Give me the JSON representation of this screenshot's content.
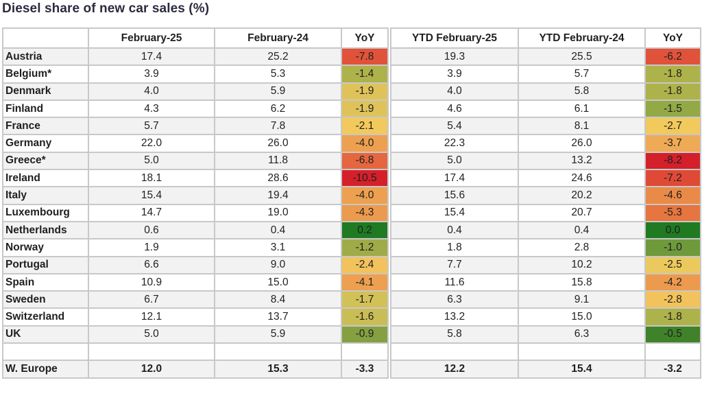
{
  "title": "Diesel share of new car sales (%)",
  "chart_data": {
    "type": "table",
    "title": "Diesel share of new car sales (%)",
    "columns": [
      "",
      "February-25",
      "February-24",
      "YoY",
      "YTD February-25",
      "YTD February-24",
      "YoY"
    ],
    "rows": [
      {
        "country": "Austria",
        "feb25": "17.4",
        "feb24": "25.2",
        "yoy": "-7.8",
        "ytd25": "19.3",
        "ytd24": "25.5",
        "ytd_yoy": "-6.2",
        "yoy_color": "#e0533a",
        "ytd_yoy_color": "#e0533a"
      },
      {
        "country": "Belgium*",
        "feb25": "3.9",
        "feb24": "5.3",
        "yoy": "-1.4",
        "ytd25": "3.9",
        "ytd24": "5.7",
        "ytd_yoy": "-1.8",
        "yoy_color": "#adb24a",
        "ytd_yoy_color": "#adb24a"
      },
      {
        "country": "Denmark",
        "feb25": "4.0",
        "feb24": "5.9",
        "yoy": "-1.9",
        "ytd25": "4.0",
        "ytd24": "5.8",
        "ytd_yoy": "-1.8",
        "yoy_color": "#dfc35a",
        "ytd_yoy_color": "#adb24a"
      },
      {
        "country": "Finland",
        "feb25": "4.3",
        "feb24": "6.2",
        "yoy": "-1.9",
        "ytd25": "4.6",
        "ytd24": "6.1",
        "ytd_yoy": "-1.5",
        "yoy_color": "#dfc35a",
        "ytd_yoy_color": "#92a945"
      },
      {
        "country": "France",
        "feb25": "5.7",
        "feb24": "7.8",
        "yoy": "-2.1",
        "ytd25": "5.4",
        "ytd24": "8.1",
        "ytd_yoy": "-2.7",
        "yoy_color": "#f2c95c",
        "ytd_yoy_color": "#f2c95c"
      },
      {
        "country": "Germany",
        "feb25": "22.0",
        "feb24": "26.0",
        "yoy": "-4.0",
        "ytd25": "22.3",
        "ytd24": "26.0",
        "ytd_yoy": "-3.7",
        "yoy_color": "#eda050",
        "ytd_yoy_color": "#efaa55"
      },
      {
        "country": "Greece*",
        "feb25": "5.0",
        "feb24": "11.8",
        "yoy": "-6.8",
        "ytd25": "5.0",
        "ytd24": "13.2",
        "ytd_yoy": "-8.2",
        "yoy_color": "#e4673f",
        "ytd_yoy_color": "#d4202a"
      },
      {
        "country": "Ireland",
        "feb25": "18.1",
        "feb24": "28.6",
        "yoy": "-10.5",
        "ytd25": "17.4",
        "ytd24": "24.6",
        "ytd_yoy": "-7.2",
        "yoy_color": "#d4202a",
        "ytd_yoy_color": "#df4a36"
      },
      {
        "country": "Italy",
        "feb25": "15.4",
        "feb24": "19.4",
        "yoy": "-4.0",
        "ytd25": "15.6",
        "ytd24": "20.2",
        "ytd_yoy": "-4.6",
        "yoy_color": "#eda050",
        "ytd_yoy_color": "#ea8a48"
      },
      {
        "country": "Luxembourg",
        "feb25": "14.7",
        "feb24": "19.0",
        "yoy": "-4.3",
        "ytd25": "15.4",
        "ytd24": "20.7",
        "ytd_yoy": "-5.3",
        "yoy_color": "#ec9a4e",
        "ytd_yoy_color": "#e6753f"
      },
      {
        "country": "Netherlands",
        "feb25": "0.6",
        "feb24": "0.4",
        "yoy": "0.2",
        "ytd25": "0.4",
        "ytd24": "0.4",
        "ytd_yoy": "0.0",
        "yoy_color": "#1f7a22",
        "ytd_yoy_color": "#1f7a22"
      },
      {
        "country": "Norway",
        "feb25": "1.9",
        "feb24": "3.1",
        "yoy": "-1.2",
        "ytd25": "1.8",
        "ytd24": "2.8",
        "ytd_yoy": "-1.0",
        "yoy_color": "#9fab48",
        "ytd_yoy_color": "#6f9a3c"
      },
      {
        "country": "Portugal",
        "feb25": "6.6",
        "feb24": "9.0",
        "yoy": "-2.4",
        "ytd25": "7.7",
        "ytd24": "10.2",
        "ytd_yoy": "-2.5",
        "yoy_color": "#f2c35c",
        "ytd_yoy_color": "#ecc95c"
      },
      {
        "country": "Spain",
        "feb25": "10.9",
        "feb24": "15.0",
        "yoy": "-4.1",
        "ytd25": "11.6",
        "ytd24": "15.8",
        "ytd_yoy": "-4.2",
        "yoy_color": "#eda050",
        "ytd_yoy_color": "#ec9a4e"
      },
      {
        "country": "Sweden",
        "feb25": "6.7",
        "feb24": "8.4",
        "yoy": "-1.7",
        "ytd25": "6.3",
        "ytd24": "9.1",
        "ytd_yoy": "-2.8",
        "yoy_color": "#d2c157",
        "ytd_yoy_color": "#f2c35c"
      },
      {
        "country": "Switzerland",
        "feb25": "12.1",
        "feb24": "13.7",
        "yoy": "-1.6",
        "ytd25": "13.2",
        "ytd24": "15.0",
        "ytd_yoy": "-1.8",
        "yoy_color": "#c9bd55",
        "ytd_yoy_color": "#adb24a"
      },
      {
        "country": "UK",
        "feb25": "5.0",
        "feb24": "5.9",
        "yoy": "-0.9",
        "ytd25": "5.8",
        "ytd24": "6.3",
        "ytd_yoy": "-0.5",
        "yoy_color": "#84a040",
        "ytd_yoy_color": "#3f8229"
      }
    ],
    "total": {
      "country": "W. Europe",
      "feb25": "12.0",
      "feb24": "15.3",
      "yoy": "-3.3",
      "ytd25": "12.2",
      "ytd24": "15.4",
      "ytd_yoy": "-3.2"
    }
  }
}
